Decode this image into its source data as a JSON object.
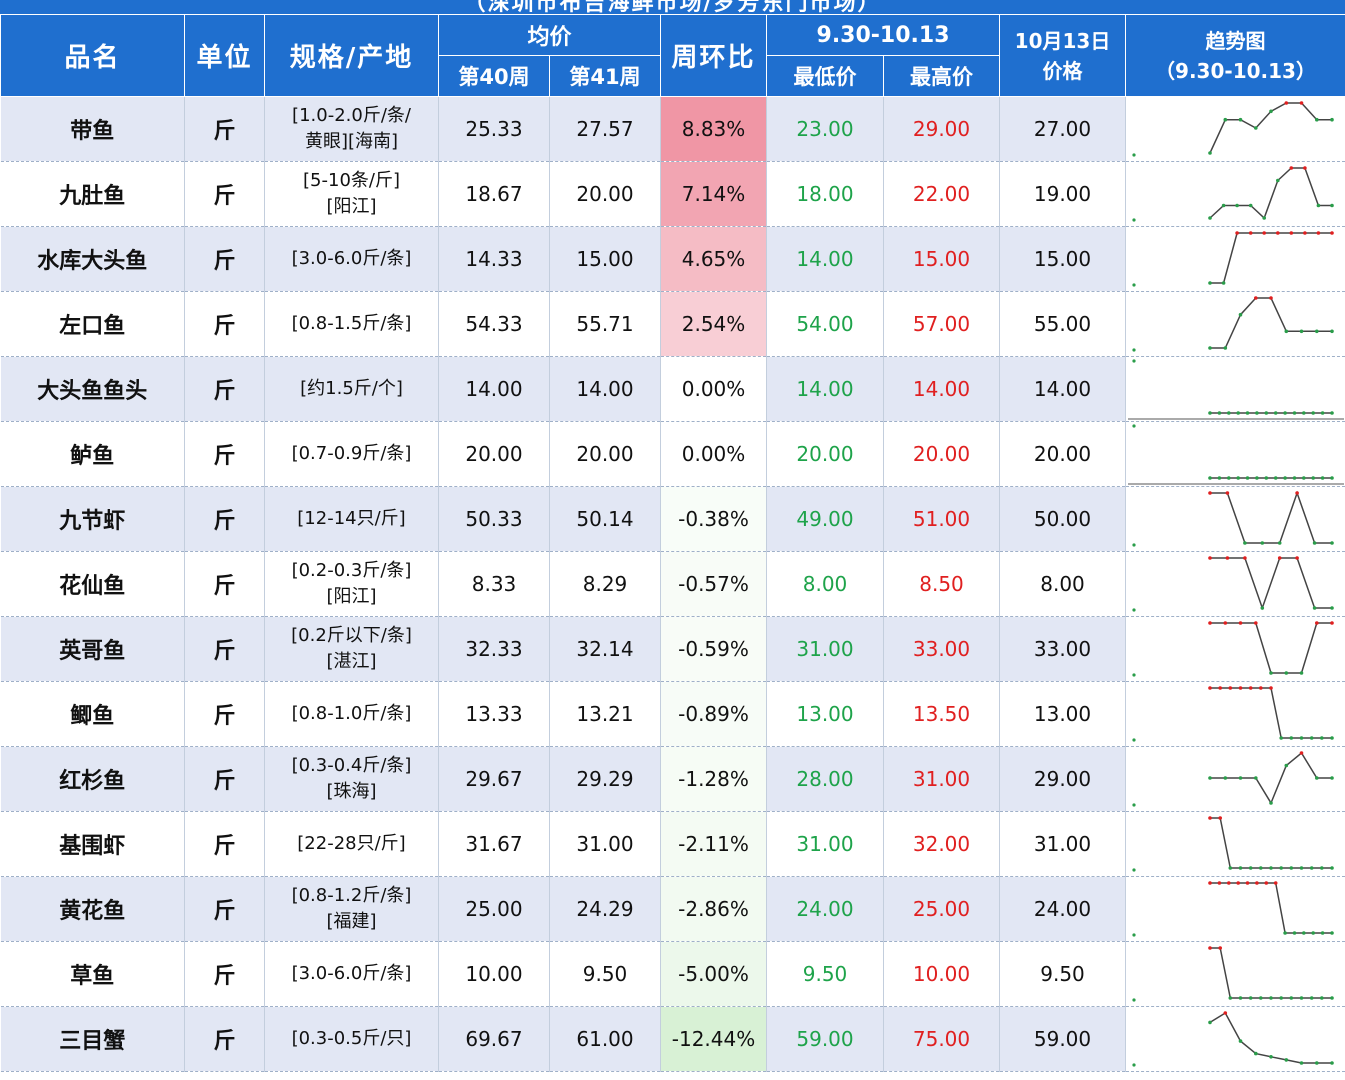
{
  "top_title": "（深圳市布吉海鲜市场/罗芳东门市场）",
  "headers": {
    "name": "品名",
    "unit": "单位",
    "spec": "规格/产地",
    "avg": "均价",
    "week40": "第40周",
    "week41": "第41周",
    "wow": "周环比",
    "range": "9.30-10.13",
    "min": "最低价",
    "max": "最高价",
    "price_line1": "10月13日",
    "price_line2": "价格",
    "trend_line1": "趋势图",
    "trend_line2": "（9.30-10.13）"
  },
  "colors": {
    "header_bg": "#1f6fcf",
    "low_price": "#1ea34a",
    "high_price": "#e02020",
    "wow_positive": "#f4aab5",
    "wow_negative": "#d6f0d4"
  },
  "rows": [
    {
      "name": "带鱼",
      "unit": "斤",
      "spec1": "[1.0-2.0斤/条/",
      "spec2": "黄眼][海南]",
      "w40": "25.33",
      "w41": "27.57",
      "wow": "8.83%",
      "wow_value": 8.83,
      "min": "23.00",
      "max": "29.00",
      "price": "27.00",
      "trend": [
        23,
        27,
        27,
        26,
        28,
        29,
        29,
        27,
        27
      ]
    },
    {
      "name": "九肚鱼",
      "unit": "斤",
      "spec1": "[5-10条/斤]",
      "spec2": "[阳江]",
      "w40": "18.67",
      "w41": "20.00",
      "wow": "7.14%",
      "wow_value": 7.14,
      "min": "18.00",
      "max": "22.00",
      "price": "19.00",
      "trend": [
        18,
        19,
        19,
        19,
        18,
        21,
        22,
        22,
        19,
        19
      ]
    },
    {
      "name": "水库大头鱼",
      "unit": "斤",
      "spec1": "[3.0-6.0斤/条]",
      "spec2": "",
      "w40": "14.33",
      "w41": "15.00",
      "wow": "4.65%",
      "wow_value": 4.65,
      "min": "14.00",
      "max": "15.00",
      "price": "15.00",
      "trend": [
        14,
        14,
        15,
        15,
        15,
        15,
        15,
        15,
        15,
        15
      ]
    },
    {
      "name": "左口鱼",
      "unit": "斤",
      "spec1": "[0.8-1.5斤/条]",
      "spec2": "",
      "w40": "54.33",
      "w41": "55.71",
      "wow": "2.54%",
      "wow_value": 2.54,
      "min": "54.00",
      "max": "57.00",
      "price": "55.00",
      "trend": [
        54,
        54,
        56,
        57,
        57,
        55,
        55,
        55,
        55
      ]
    },
    {
      "name": "大头鱼鱼头",
      "unit": "斤",
      "spec1": "[约1.5斤/个]",
      "spec2": "",
      "w40": "14.00",
      "w41": "14.00",
      "wow": "0.00%",
      "wow_value": 0.0,
      "min": "14.00",
      "max": "14.00",
      "price": "14.00",
      "trend": [
        14,
        14,
        14,
        14,
        14,
        14,
        14,
        14,
        14,
        14,
        14,
        14,
        14,
        14
      ]
    },
    {
      "name": "鲈鱼",
      "unit": "斤",
      "spec1": "[0.7-0.9斤/条]",
      "spec2": "",
      "w40": "20.00",
      "w41": "20.00",
      "wow": "0.00%",
      "wow_value": 0.0,
      "min": "20.00",
      "max": "20.00",
      "price": "20.00",
      "trend": [
        20,
        20,
        20,
        20,
        20,
        20,
        20,
        20,
        20,
        20,
        20,
        20,
        20,
        20
      ]
    },
    {
      "name": "九节虾",
      "unit": "斤",
      "spec1": "[12-14只/斤]",
      "spec2": "",
      "w40": "50.33",
      "w41": "50.14",
      "wow": "-0.38%",
      "wow_value": -0.38,
      "min": "49.00",
      "max": "51.00",
      "price": "50.00",
      "trend": [
        51,
        51,
        50,
        50,
        50,
        51,
        50,
        50
      ]
    },
    {
      "name": "花仙鱼",
      "unit": "斤",
      "spec1": "[0.2-0.3斤/条]",
      "spec2": "[阳江]",
      "w40": "8.33",
      "w41": "8.29",
      "wow": "-0.57%",
      "wow_value": -0.57,
      "min": "8.00",
      "max": "8.50",
      "price": "8.00",
      "trend": [
        8.5,
        8.5,
        8.5,
        8,
        8.5,
        8.5,
        8,
        8
      ]
    },
    {
      "name": "英哥鱼",
      "unit": "斤",
      "spec1": "[0.2斤以下/条]",
      "spec2": "[湛江]",
      "w40": "32.33",
      "w41": "32.14",
      "wow": "-0.59%",
      "wow_value": -0.59,
      "min": "31.00",
      "max": "33.00",
      "price": "33.00",
      "trend": [
        33,
        33,
        33,
        33,
        31,
        31,
        31,
        33,
        33
      ]
    },
    {
      "name": "鲫鱼",
      "unit": "斤",
      "spec1": "[0.8-1.0斤/条]",
      "spec2": "",
      "w40": "13.33",
      "w41": "13.21",
      "wow": "-0.89%",
      "wow_value": -0.89,
      "min": "13.00",
      "max": "13.50",
      "price": "13.00",
      "trend": [
        13.5,
        13.5,
        13.5,
        13.5,
        13.5,
        13.5,
        13.5,
        13,
        13,
        13,
        13,
        13,
        13
      ]
    },
    {
      "name": "红杉鱼",
      "unit": "斤",
      "spec1": "[0.3-0.4斤/条]",
      "spec2": "[珠海]",
      "w40": "29.67",
      "w41": "29.29",
      "wow": "-1.28%",
      "wow_value": -1.28,
      "min": "28.00",
      "max": "31.00",
      "price": "29.00",
      "trend": [
        29,
        29,
        29,
        29,
        28,
        29.5,
        30,
        29,
        29
      ]
    },
    {
      "name": "基围虾",
      "unit": "斤",
      "spec1": "[22-28只/斤]",
      "spec2": "",
      "w40": "31.67",
      "w41": "31.00",
      "wow": "-2.11%",
      "wow_value": -2.11,
      "min": "31.00",
      "max": "32.00",
      "price": "31.00",
      "trend": [
        32,
        32,
        31,
        31,
        31,
        31,
        31,
        31,
        31,
        31,
        31,
        31,
        31
      ]
    },
    {
      "name": "黄花鱼",
      "unit": "斤",
      "spec1": "[0.8-1.2斤/条]",
      "spec2": "[福建]",
      "w40": "25.00",
      "w41": "24.29",
      "wow": "-2.86%",
      "wow_value": -2.86,
      "min": "24.00",
      "max": "25.00",
      "price": "24.00",
      "trend": [
        25,
        25,
        25,
        25,
        25,
        25,
        25,
        25,
        24,
        24,
        24,
        24,
        24,
        24
      ]
    },
    {
      "name": "草鱼",
      "unit": "斤",
      "spec1": "[3.0-6.0斤/条]",
      "spec2": "",
      "w40": "10.00",
      "w41": "9.50",
      "wow": "-5.00%",
      "wow_value": -5.0,
      "min": "9.50",
      "max": "10.00",
      "price": "9.50",
      "trend": [
        10,
        10,
        9.5,
        9.5,
        9.5,
        9.5,
        9.5,
        9.5,
        9.5,
        9.5,
        9.5,
        9.5,
        9.5
      ]
    },
    {
      "name": "三目蟹",
      "unit": "斤",
      "spec1": "[0.3-0.5斤/只]",
      "spec2": "",
      "w40": "69.67",
      "w41": "61.00",
      "wow": "-12.44%",
      "wow_value": -12.44,
      "min": "59.00",
      "max": "75.00",
      "price": "59.00",
      "trend": [
        72,
        75,
        66,
        62,
        61,
        60,
        59,
        59,
        59
      ]
    }
  ]
}
